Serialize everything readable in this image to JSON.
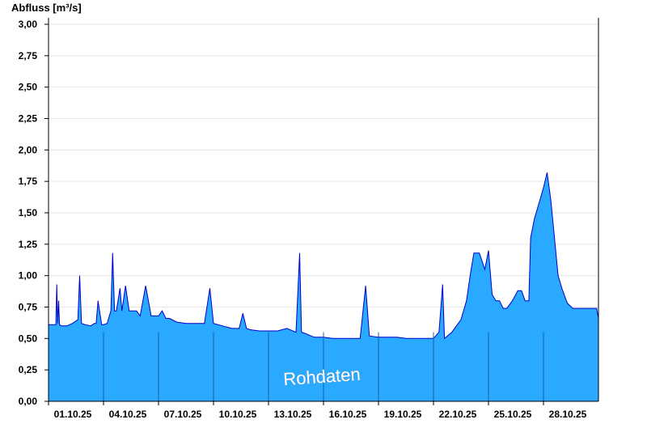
{
  "chart_data": {
    "type": "area",
    "ylabel": "Abfluss [m³/s]",
    "annotation": "Rohdaten",
    "ylim": [
      0,
      3.0
    ],
    "yticks": [
      "0,00",
      "0,25",
      "0,50",
      "0,75",
      "1,00",
      "1,25",
      "1,50",
      "1,75",
      "2,00",
      "2,25",
      "2,50",
      "2,75",
      "3,00"
    ],
    "x_tick_labels": [
      "01.10.25",
      "04.10.25",
      "07.10.25",
      "10.10.25",
      "13.10.25",
      "16.10.25",
      "19.10.25",
      "22.10.25",
      "25.10.25",
      "28.10.25"
    ],
    "x_range_days": [
      0,
      30
    ],
    "grid": true,
    "colors": {
      "fill": "#29a9ff",
      "line": "#0000cc",
      "grid": "#e6e6e6"
    },
    "series": [
      {
        "x_days": [
          0,
          0.4,
          0.45,
          0.5,
          0.55,
          0.6,
          0.7,
          1.0,
          1.3,
          1.6,
          1.7,
          1.8,
          2.0,
          2.3,
          2.5,
          2.6,
          2.7,
          2.9,
          3.0,
          3.2,
          3.4,
          3.5,
          3.6,
          3.7,
          3.9,
          4.0,
          4.2,
          4.4,
          4.6,
          4.8,
          5.0,
          5.3,
          5.6,
          6.0,
          6.2,
          6.4,
          6.6,
          7.0,
          7.5,
          8.0,
          8.5,
          8.8,
          9.0,
          9.5,
          10.0,
          10.4,
          10.6,
          10.8,
          11.0,
          11.5,
          12.0,
          12.5,
          13.0,
          13.5,
          13.7,
          13.8,
          14.0,
          14.5,
          15.0,
          15.5,
          16.0,
          16.5,
          17.0,
          17.3,
          17.5,
          18.0,
          18.5,
          19.0,
          19.5,
          20.0,
          20.5,
          21.0,
          21.3,
          21.5,
          21.6,
          22.0,
          22.5,
          22.8,
          23.0,
          23.2,
          23.5,
          23.8,
          24.0,
          24.2,
          24.4,
          24.6,
          24.8,
          25.0,
          25.3,
          25.6,
          25.8,
          26.0,
          26.2,
          26.3,
          26.5,
          26.8,
          27.0,
          27.2,
          27.4,
          27.6,
          27.8,
          28.0,
          28.3,
          28.6,
          29.0,
          29.5,
          29.9,
          30.0
        ],
        "values": [
          0.61,
          0.61,
          0.93,
          0.62,
          0.8,
          0.61,
          0.6,
          0.6,
          0.62,
          0.65,
          1.0,
          0.62,
          0.61,
          0.6,
          0.62,
          0.62,
          0.8,
          0.61,
          0.61,
          0.62,
          0.72,
          1.18,
          0.72,
          0.72,
          0.9,
          0.72,
          0.92,
          0.72,
          0.72,
          0.72,
          0.68,
          0.92,
          0.68,
          0.68,
          0.72,
          0.66,
          0.66,
          0.63,
          0.62,
          0.62,
          0.62,
          0.9,
          0.62,
          0.6,
          0.58,
          0.58,
          0.7,
          0.58,
          0.57,
          0.56,
          0.56,
          0.56,
          0.58,
          0.55,
          1.18,
          0.55,
          0.54,
          0.51,
          0.51,
          0.5,
          0.5,
          0.5,
          0.5,
          0.92,
          0.52,
          0.51,
          0.51,
          0.51,
          0.5,
          0.5,
          0.5,
          0.5,
          0.55,
          0.93,
          0.5,
          0.55,
          0.65,
          0.8,
          1.0,
          1.18,
          1.18,
          1.05,
          1.2,
          0.85,
          0.8,
          0.8,
          0.74,
          0.74,
          0.8,
          0.88,
          0.88,
          0.8,
          0.8,
          1.3,
          1.45,
          1.6,
          1.7,
          1.82,
          1.6,
          1.3,
          1.0,
          0.9,
          0.78,
          0.74,
          0.74,
          0.74,
          0.74,
          0.66
        ]
      }
    ]
  }
}
